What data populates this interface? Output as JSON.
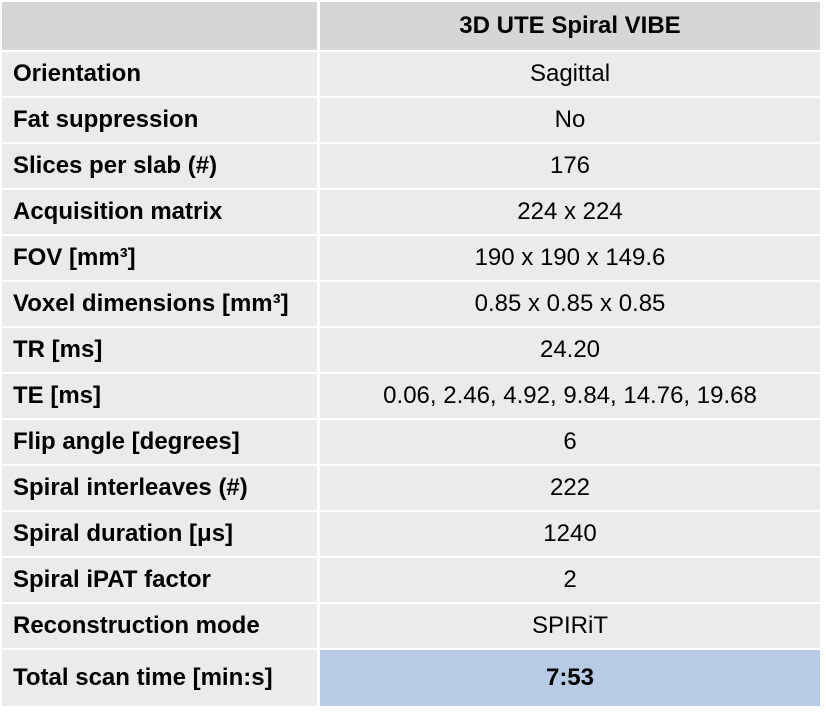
{
  "table": {
    "header": {
      "label": "",
      "value": "3D UTE Spiral VIBE"
    },
    "rows": [
      {
        "label": "Orientation",
        "value": "Sagittal"
      },
      {
        "label": "Fat suppression",
        "value": "No"
      },
      {
        "label": "Slices per slab (#)",
        "value": "176"
      },
      {
        "label": "Acquisition matrix",
        "value": "224 x 224"
      },
      {
        "label": "FOV [mm³]",
        "value": "190 x 190 x 149.6"
      },
      {
        "label": "Voxel dimensions [mm³]",
        "value": "0.85 x 0.85 x 0.85"
      },
      {
        "label": "TR [ms]",
        "value": "24.20"
      },
      {
        "label": "TE [ms]",
        "value": "0.06, 2.46, 4.92, 9.84, 14.76, 19.68"
      },
      {
        "label": "Flip angle [degrees]",
        "value": "6"
      },
      {
        "label": "Spiral interleaves (#)",
        "value": "222"
      },
      {
        "label": "Spiral duration [μs]",
        "value": "1240"
      },
      {
        "label": "Spiral iPAT factor",
        "value": "2"
      },
      {
        "label": "Reconstruction mode",
        "value": "SPIRiT"
      }
    ],
    "total": {
      "label": "Total scan time [min:s]",
      "value": "7:53"
    }
  },
  "colors": {
    "header_bg": "#d6d6d6",
    "row_bg": "#ebebeb",
    "highlight_bg": "#b7cbe6"
  }
}
